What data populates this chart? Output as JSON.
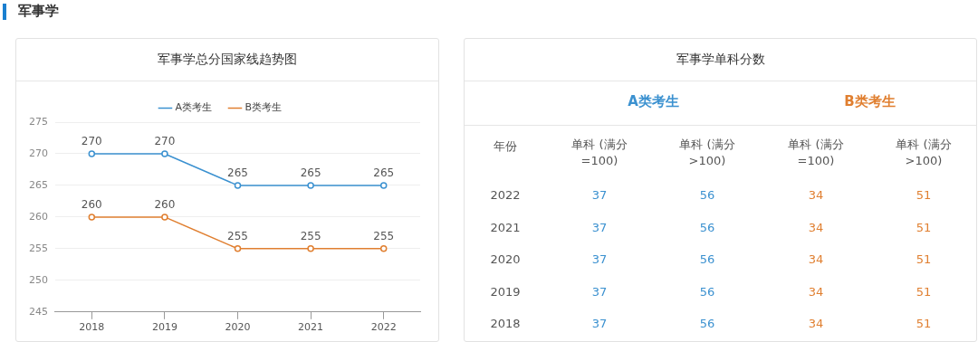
{
  "chart_data": [
    {
      "type": "line",
      "title": "军事学总分国家线趋势图",
      "annotations": [
        "军事学"
      ],
      "categories": [
        "2018",
        "2019",
        "2020",
        "2021",
        "2022"
      ],
      "series": [
        {
          "name": "A类考生",
          "color": "#3b91d0",
          "values": [
            270,
            270,
            265,
            265,
            265
          ]
        },
        {
          "name": "B类考生",
          "color": "#e07f30",
          "values": [
            260,
            260,
            255,
            255,
            255
          ]
        }
      ],
      "ylim": [
        245,
        275
      ],
      "yticks": [
        245,
        250,
        255,
        260,
        265,
        270,
        275
      ],
      "grid": "y",
      "legend": "top",
      "marker": "circle",
      "data_labels": true
    },
    {
      "type": "heatmap",
      "title": "军事学单科分数",
      "ylabel": "年份",
      "annotations": [
        "A类考生",
        "B类考生"
      ],
      "categories": [
        "单科 (满分=100)",
        "单科 (满分>100)",
        "单科 (满分=100)",
        "单科 (满分>100)"
      ],
      "colors": [
        "#3b91d0",
        "#3b91d0",
        "#e07f30",
        "#e07f30"
      ],
      "y_categories": [
        "2022",
        "2021",
        "2020",
        "2019",
        "2018"
      ],
      "cells": [
        [
          37,
          56,
          34,
          51
        ],
        [
          37,
          56,
          34,
          51
        ],
        [
          37,
          56,
          34,
          51
        ],
        [
          37,
          56,
          34,
          51
        ],
        [
          37,
          56,
          34,
          51
        ]
      ],
      "data_labels": true
    }
  ]
}
